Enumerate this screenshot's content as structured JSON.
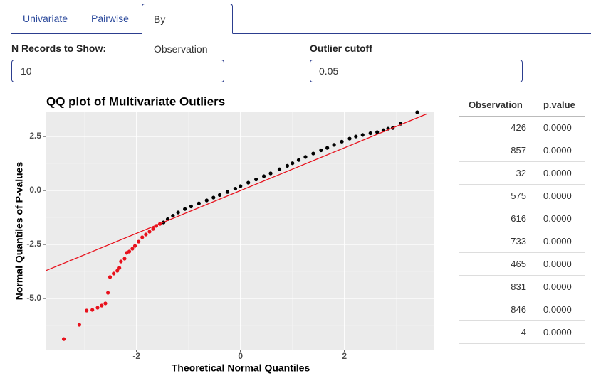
{
  "tabs": [
    "Univariate",
    "Pairwise",
    "By Observation"
  ],
  "active_tab": 2,
  "inputs": [
    {
      "label": "N Records to Show:",
      "value": "10"
    },
    {
      "label": "Outlier cutoff",
      "value": "0.05"
    }
  ],
  "chart_data": {
    "type": "scatter",
    "title": "QQ plot of Multivariate Outliers",
    "x_label": "Theoretical Normal Quantiles",
    "y_label": "Normal Quantiles of P-values",
    "xlim": [
      -3.75,
      3.73
    ],
    "ylim": [
      -7.37,
      3.62
    ],
    "xticks": [
      -2,
      0,
      2
    ],
    "yticks": [
      2.5,
      {
        "value": 0,
        "label": "0.0"
      },
      -2.5,
      {
        "value": -5,
        "label": "-5.0"
      }
    ],
    "minor_xticks": [
      -3,
      -1,
      1,
      3
    ],
    "minor_yticks": [
      1.25,
      -1.25,
      -3.75,
      -6.25
    ],
    "grid": true,
    "series": [
      {
        "color": "#e8111c",
        "x": [
          -3.4,
          -3.1,
          -2.96,
          -2.85,
          -2.75,
          -2.67,
          -2.6,
          -2.55,
          -2.51,
          -2.44,
          -2.37,
          -2.33,
          -2.3,
          -2.23,
          -2.19,
          -2.14,
          -2.08,
          -2.03,
          -1.96,
          -1.89,
          -1.82,
          -1.75,
          -1.68,
          -1.62,
          -1.55
        ],
        "values": [
          -6.88,
          -6.22,
          -5.56,
          -5.53,
          -5.43,
          -5.33,
          -5.23,
          -4.74,
          -4.01,
          -3.85,
          -3.72,
          -3.59,
          -3.29,
          -3.16,
          -2.89,
          -2.83,
          -2.7,
          -2.57,
          -2.37,
          -2.17,
          -2.04,
          -1.91,
          -1.78,
          -1.64,
          -1.55
        ]
      },
      {
        "color": "#000000",
        "x": [
          -1.48,
          -1.4,
          -1.3,
          -1.2,
          -1.07,
          -0.95,
          -0.8,
          -0.65,
          -0.52,
          -0.4,
          -0.25,
          -0.1,
          0.0,
          0.15,
          0.3,
          0.45,
          0.58,
          0.75,
          0.9,
          1.0,
          1.12,
          1.25,
          1.4,
          1.55,
          1.67,
          1.8,
          1.95,
          2.1,
          2.22,
          2.35,
          2.5,
          2.63,
          2.75,
          2.84,
          2.93,
          3.08,
          3.4
        ],
        "values": [
          -1.48,
          -1.33,
          -1.17,
          -1.02,
          -0.86,
          -0.74,
          -0.6,
          -0.46,
          -0.33,
          -0.21,
          -0.07,
          0.08,
          0.2,
          0.36,
          0.51,
          0.66,
          0.79,
          0.98,
          1.14,
          1.26,
          1.41,
          1.55,
          1.71,
          1.86,
          1.97,
          2.11,
          2.26,
          2.4,
          2.5,
          2.57,
          2.65,
          2.7,
          2.79,
          2.86,
          2.89,
          3.09,
          3.62
        ]
      }
    ],
    "reference_line": {
      "color": "#e8111c",
      "x": [
        -3.75,
        3.59
      ],
      "values": [
        -3.72,
        3.55
      ]
    }
  },
  "table": {
    "header": [
      "Observation",
      "p.value"
    ],
    "rows": [
      [
        "426",
        "0.0000"
      ],
      [
        "857",
        "0.0000"
      ],
      [
        "32",
        "0.0000"
      ],
      [
        "575",
        "0.0000"
      ],
      [
        "616",
        "0.0000"
      ],
      [
        "733",
        "0.0000"
      ],
      [
        "465",
        "0.0000"
      ],
      [
        "831",
        "0.0000"
      ],
      [
        "846",
        "0.0000"
      ],
      [
        "4",
        "0.0000"
      ]
    ]
  }
}
